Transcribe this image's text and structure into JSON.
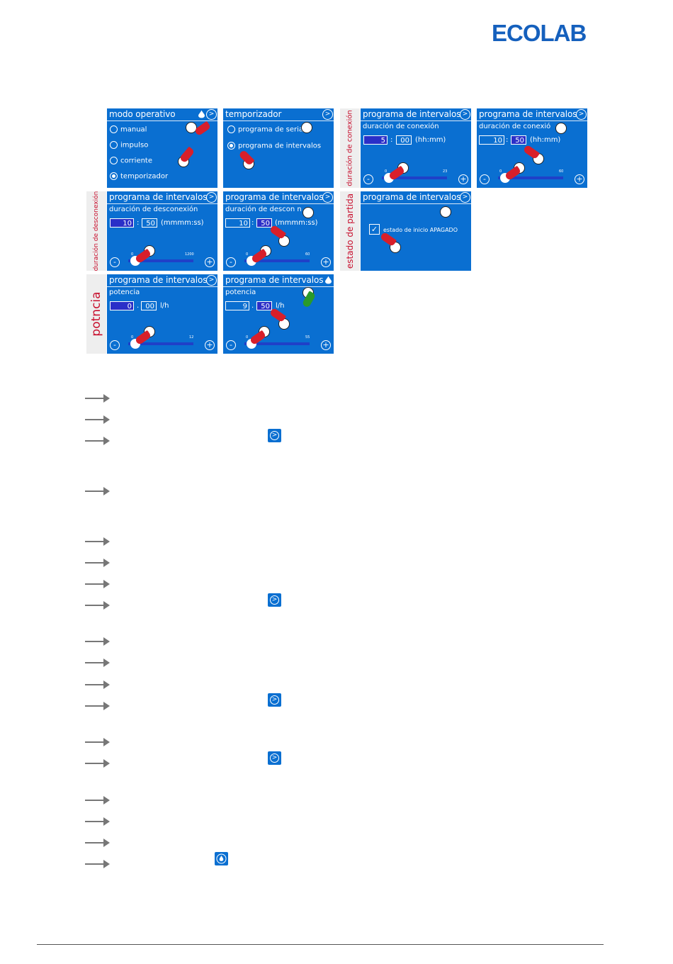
{
  "header": {
    "logo_text": "ECOLAB"
  },
  "side_labels": {
    "duracion_conexion": "duración de conexión",
    "duracion_desconexion": "duración de desconexión",
    "estado_partida": "estado de partida",
    "potencia": "potncia"
  },
  "screens": {
    "modo": {
      "title": "modo operativo",
      "options": [
        "manual",
        "impulso",
        "corriente",
        "temporizador"
      ],
      "selected": "temporizador"
    },
    "temporizador": {
      "title": "temporizador",
      "options": [
        "programa de serial",
        "programa de intervalos"
      ],
      "selected": "programa de intervalos"
    },
    "conexion_a": {
      "title": "programa de intervalos",
      "subtitle": "duración de conexión",
      "hours": "5",
      "minutes": "00",
      "unit": "(hh:mm)",
      "tick_min": "0",
      "tick_max": "23"
    },
    "conexion_b": {
      "title": "programa de intervalos",
      "subtitle": "duración de conexió",
      "hours": "10",
      "minutes": "50",
      "unit": "(hh:mm)",
      "tick_min": "0",
      "tick_max": "60"
    },
    "desconexion_a": {
      "title": "programa de intervalos",
      "subtitle": "duración de desconexión",
      "hours": "10",
      "minutes": "50",
      "unit": "(mmmm:ss)",
      "tick_min": "0",
      "tick_max": "1200"
    },
    "desconexion_b": {
      "title": "programa de intervalos",
      "subtitle": "duración de descon n",
      "hours": "10",
      "minutes": "50",
      "unit": "(mmmm:ss)",
      "tick_min": "0",
      "tick_max": "60"
    },
    "estado": {
      "title": "programa de intervalos",
      "checkbox_label": "estado de inicio APAGADO",
      "checked": true
    },
    "potencia_a": {
      "title": "programa de intervalos",
      "subtitle": "potencia",
      "whole": "0",
      "decimal": "00",
      "unit": "l/h",
      "tick_min": "0",
      "tick_max": "12"
    },
    "potencia_b": {
      "title": "programa de intervalos",
      "subtitle": "potencia",
      "whole": "9",
      "decimal": "50",
      "unit": "l/h",
      "tick_min": "0",
      "tick_max": "55"
    }
  },
  "icons": {
    "nav": "chevron-right-icon",
    "drop": "drop-icon",
    "plus": "+",
    "minus": "-"
  },
  "colors": {
    "screen_blue": "#0a6fd1",
    "highlight": "#2a2fc8",
    "brand_red": "#c8102e",
    "logo_blue": "#1560bd"
  }
}
